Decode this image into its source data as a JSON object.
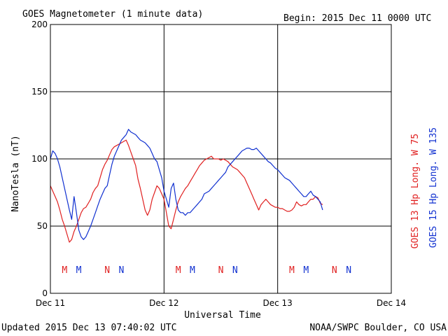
{
  "chart_data": {
    "type": "line",
    "title": "GOES Magnetometer (1 minute data)",
    "begin": "Begin:  2015 Dec 11 0000 UTC",
    "xlabel": "Universal Time",
    "ylabel": "NanoTesla (nT)",
    "x_ticks": [
      "Dec 11",
      "Dec 12",
      "Dec 13",
      "Dec 14"
    ],
    "y_ticks": [
      "0",
      "50",
      "100",
      "150",
      "200"
    ],
    "xlim": [
      0,
      72
    ],
    "ylim": [
      0,
      200
    ],
    "grid": true,
    "series": [
      {
        "name": "GOES 13 Hp  Long. W 75",
        "color": "#e02020",
        "x": [
          0,
          0.5,
          1,
          1.5,
          2,
          2.5,
          3,
          3.5,
          4,
          4.5,
          5,
          5.5,
          6,
          6.5,
          7,
          7.5,
          8,
          8.5,
          9,
          9.5,
          10,
          10.5,
          11,
          11.5,
          12,
          12.5,
          13,
          13.5,
          14,
          14.5,
          15,
          15.5,
          16,
          16.5,
          17,
          17.5,
          18,
          18.5,
          19,
          19.5,
          20,
          20.5,
          21,
          21.5,
          22,
          22.5,
          23,
          23.5,
          24,
          24.5,
          25,
          25.5,
          26,
          26.5,
          27,
          27.5,
          28,
          28.5,
          29,
          29.5,
          30,
          30.5,
          31,
          31.5,
          32,
          32.5,
          33,
          33.5,
          34,
          34.5,
          35,
          35.5,
          36,
          36.5,
          37,
          37.5,
          38,
          38.5,
          39,
          39.5,
          40,
          40.5,
          41,
          41.5,
          42,
          42.5,
          43,
          43.5,
          44,
          44.5,
          45,
          45.5,
          46,
          46.5,
          47,
          47.5,
          48,
          48.5,
          49,
          49.5,
          50,
          50.5,
          51,
          51.5,
          52,
          52.5,
          53,
          53.5,
          54,
          54.5,
          55,
          55.5,
          56,
          56.5,
          57,
          57.5
        ],
        "y": [
          80,
          76,
          72,
          68,
          62,
          55,
          50,
          44,
          38,
          40,
          46,
          50,
          55,
          60,
          63,
          64,
          67,
          70,
          75,
          78,
          80,
          86,
          92,
          96,
          99,
          103,
          107,
          109,
          110,
          111,
          112,
          113,
          114,
          110,
          105,
          100,
          95,
          85,
          78,
          70,
          62,
          58,
          62,
          70,
          75,
          80,
          78,
          74,
          70,
          60,
          50,
          48,
          55,
          62,
          68,
          72,
          75,
          78,
          80,
          83,
          86,
          89,
          92,
          95,
          97,
          99,
          100,
          101,
          102,
          100,
          100,
          100,
          99,
          100,
          99,
          98,
          96,
          94,
          93,
          92,
          90,
          88,
          86,
          82,
          78,
          74,
          70,
          66,
          62,
          66,
          68,
          70,
          68,
          66,
          65,
          64,
          64,
          63,
          63,
          62,
          61,
          61,
          62,
          64,
          68,
          66,
          65,
          66,
          66,
          68,
          70,
          70,
          72,
          71,
          67,
          66
        ]
      },
      {
        "name": "GOES 15 Hp  Long. W 135",
        "color": "#1030d0",
        "x": [
          0,
          0.5,
          1,
          1.5,
          2,
          2.5,
          3,
          3.5,
          4,
          4.5,
          5,
          5.5,
          6,
          6.5,
          7,
          7.5,
          8,
          8.5,
          9,
          9.5,
          10,
          10.5,
          11,
          11.5,
          12,
          12.5,
          13,
          13.5,
          14,
          14.5,
          15,
          15.5,
          16,
          16.5,
          17,
          17.5,
          18,
          18.5,
          19,
          19.5,
          20,
          20.5,
          21,
          21.5,
          22,
          22.5,
          23,
          23.5,
          24,
          24.5,
          25,
          25.5,
          26,
          26.5,
          27,
          27.5,
          28,
          28.5,
          29,
          29.5,
          30,
          30.5,
          31,
          31.5,
          32,
          32.5,
          33,
          33.5,
          34,
          34.5,
          35,
          35.5,
          36,
          36.5,
          37,
          37.5,
          38,
          38.5,
          39,
          39.5,
          40,
          40.5,
          41,
          41.5,
          42,
          42.5,
          43,
          43.5,
          44,
          44.5,
          45,
          45.5,
          46,
          46.5,
          47,
          47.5,
          48,
          48.5,
          49,
          49.5,
          50,
          50.5,
          51,
          51.5,
          52,
          52.5,
          53,
          53.5,
          54,
          54.5,
          55,
          55.5,
          56,
          56.5,
          57,
          57.5
        ],
        "y": [
          100,
          106,
          104,
          100,
          94,
          86,
          78,
          70,
          62,
          55,
          72,
          60,
          47,
          42,
          40,
          42,
          46,
          50,
          55,
          60,
          65,
          70,
          74,
          78,
          80,
          88,
          96,
          102,
          106,
          110,
          114,
          116,
          118,
          122,
          120,
          119,
          118,
          116,
          114,
          113,
          112,
          110,
          108,
          104,
          100,
          98,
          92,
          86,
          76,
          70,
          64,
          78,
          82,
          70,
          62,
          60,
          60,
          58,
          60,
          60,
          62,
          64,
          66,
          68,
          70,
          74,
          75,
          76,
          78,
          80,
          82,
          84,
          86,
          88,
          90,
          94,
          96,
          98,
          100,
          102,
          104,
          106,
          107,
          108,
          108,
          107,
          107,
          108,
          106,
          104,
          102,
          100,
          98,
          97,
          95,
          93,
          92,
          90,
          88,
          86,
          85,
          84,
          82,
          80,
          78,
          76,
          74,
          72,
          72,
          74,
          76,
          73,
          72,
          70,
          68,
          62
        ]
      }
    ],
    "markers": [
      {
        "label": "M",
        "x": 3,
        "color": "#e02020"
      },
      {
        "label": "M",
        "x": 6,
        "color": "#1030d0"
      },
      {
        "label": "N",
        "x": 12,
        "color": "#e02020"
      },
      {
        "label": "N",
        "x": 15,
        "color": "#1030d0"
      },
      {
        "label": "M",
        "x": 27,
        "color": "#e02020"
      },
      {
        "label": "M",
        "x": 30,
        "color": "#1030d0"
      },
      {
        "label": "N",
        "x": 36,
        "color": "#e02020"
      },
      {
        "label": "N",
        "x": 39,
        "color": "#1030d0"
      },
      {
        "label": "M",
        "x": 51,
        "color": "#e02020"
      },
      {
        "label": "M",
        "x": 54,
        "color": "#1030d0"
      },
      {
        "label": "N",
        "x": 60,
        "color": "#e02020"
      },
      {
        "label": "N",
        "x": 63,
        "color": "#1030d0"
      }
    ],
    "footer_left": "Updated 2015 Dec 13 07:40:02 UTC",
    "footer_right": "NOAA/SWPC Boulder, CO USA"
  }
}
